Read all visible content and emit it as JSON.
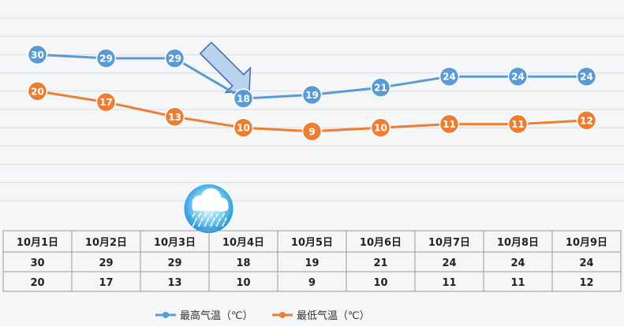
{
  "colors": {
    "high": "#5b9bd5",
    "low": "#ed7d31",
    "grid": "#d9dce3",
    "table_border": "#9a9a9a",
    "arrow_fill": "#b9d3ee",
    "arrow_stroke": "#3d6aa8"
  },
  "icons": {
    "weather": "rain-cloud-icon",
    "trend": "down-arrow-icon"
  },
  "chart_data": {
    "type": "line",
    "categories": [
      "10月1日",
      "10月2日",
      "10月3日",
      "10月4日",
      "10月5日",
      "10月6日",
      "10月7日",
      "10月8日",
      "10月9日"
    ],
    "series": [
      {
        "name": "最高气温（℃）",
        "values": [
          30,
          29,
          29,
          18,
          19,
          21,
          24,
          24,
          24
        ]
      },
      {
        "name": "最低气温（℃）",
        "values": [
          20,
          17,
          13,
          10,
          9,
          10,
          11,
          11,
          12
        ]
      }
    ],
    "ylim": [
      -10,
      40
    ],
    "grid": true,
    "data_labels": true,
    "data_table": true,
    "legend_position": "bottom",
    "rain_day": "10月3日"
  }
}
